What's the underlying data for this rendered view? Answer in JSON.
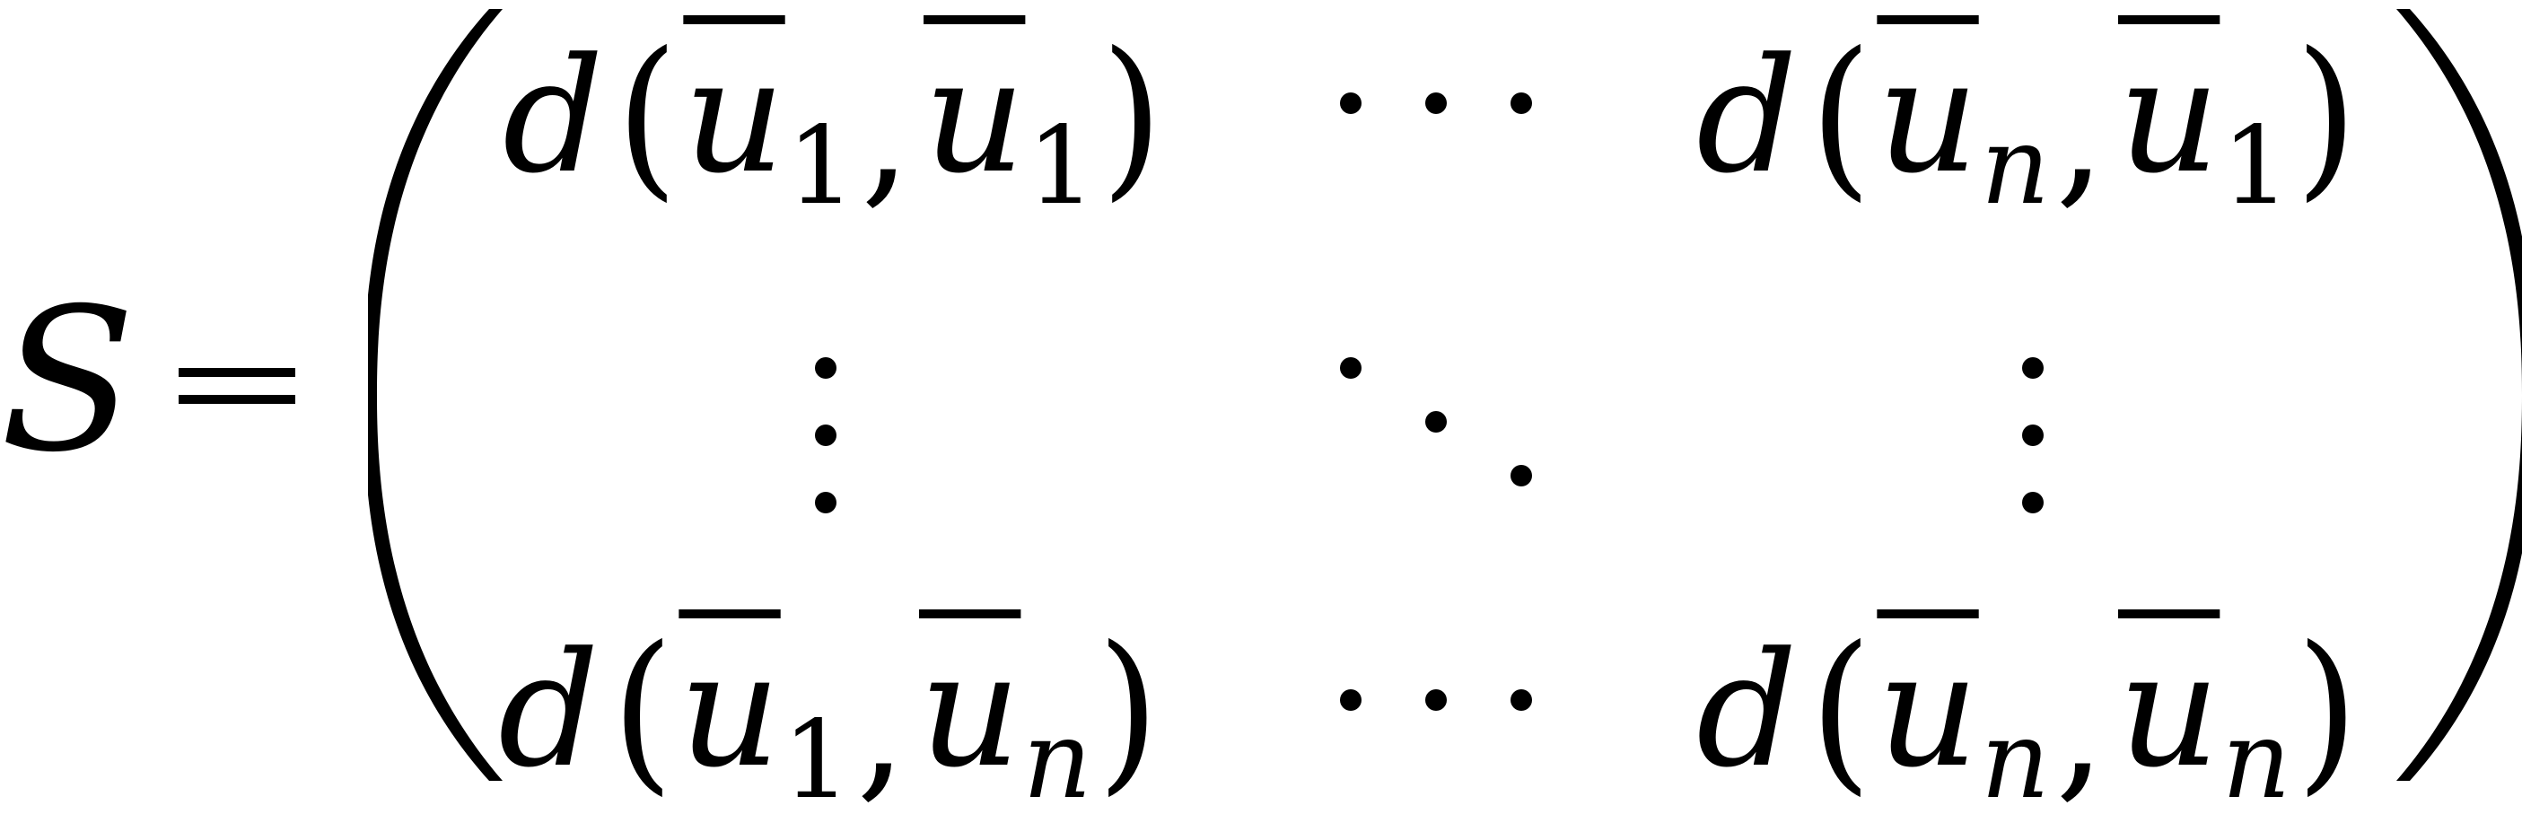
{
  "equation": {
    "lhs": "S",
    "relation": "=",
    "fn": "d",
    "var": "u",
    "sub_first": "1",
    "sub_last": "n",
    "comma": ","
  }
}
